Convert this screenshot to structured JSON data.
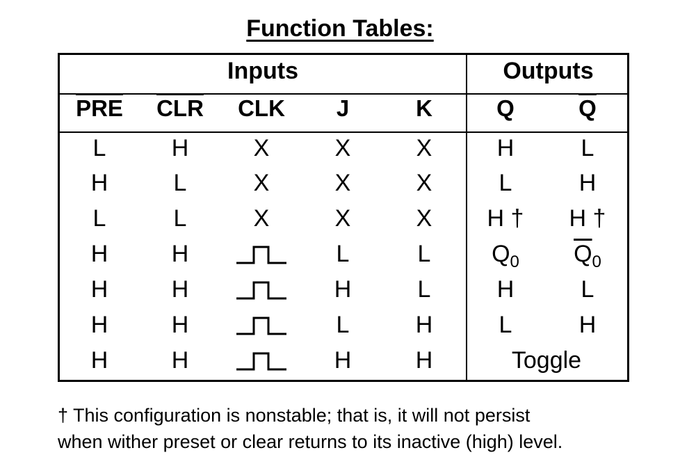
{
  "title": "Function Tables:",
  "table": {
    "group_inputs": "Inputs",
    "group_outputs": "Outputs",
    "headers": [
      "PRE",
      "CLR",
      "CLK",
      "J",
      "K",
      "Q",
      "Q"
    ],
    "header_overline": [
      true,
      true,
      false,
      false,
      false,
      false,
      true
    ],
    "rows": [
      [
        "L",
        "H",
        "X",
        "X",
        "X",
        "H",
        "L"
      ],
      [
        "H",
        "L",
        "X",
        "X",
        "X",
        "L",
        "H"
      ],
      [
        "L",
        "L",
        "X",
        "X",
        "X",
        "H †",
        "H †"
      ],
      [
        "H",
        "H",
        "pulse",
        "L",
        "L",
        "Q0",
        "Q0-bar"
      ],
      [
        "H",
        "H",
        "pulse",
        "H",
        "L",
        "H",
        "L"
      ],
      [
        "H",
        "H",
        "pulse",
        "L",
        "H",
        "L",
        "H"
      ],
      [
        "H",
        "H",
        "pulse",
        "H",
        "H",
        "Toggle",
        ""
      ]
    ],
    "q0_base": "Q",
    "q0_sub": "0",
    "clock_symbol": "positive-pulse-icon"
  },
  "footnote": {
    "line1": "† This configuration is nonstable; that is, it will not persist",
    "line2": "when wither preset or clear returns to its inactive (high) level."
  }
}
